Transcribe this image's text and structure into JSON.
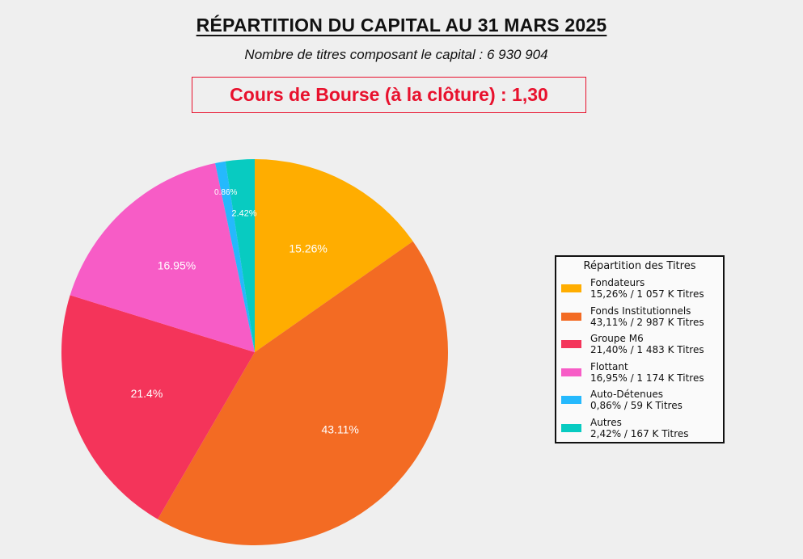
{
  "header": {
    "title": "RÉPARTITION DU CAPITAL AU 31 MARS 2025",
    "subtitle": "Nombre de titres composant le capital : 6 930 904",
    "price": "Cours de Bourse (à la clôture) : 1,30"
  },
  "chart_data": {
    "type": "pie",
    "start_angle_deg": 270,
    "direction": "clockwise",
    "slices": [
      {
        "name": "Fondateurs",
        "value": 15.26,
        "label": "15.26%",
        "detail": "15,26% / 1 057 K Titres",
        "color": "#ffad00"
      },
      {
        "name": "Fonds Institutionnels",
        "value": 43.11,
        "label": "43.11%",
        "detail": "43,11% / 2 987 K Titres",
        "color": "#f36b23"
      },
      {
        "name": "Groupe M6",
        "value": 21.4,
        "label": "21.4%",
        "detail": "21,40% / 1 483 K Titres",
        "color": "#f4345a"
      },
      {
        "name": "Flottant",
        "value": 16.95,
        "label": "16.95%",
        "detail": "16,95% / 1 174 K Titres",
        "color": "#f75cc6"
      },
      {
        "name": "Auto-Détenues",
        "value": 0.86,
        "label": "0.86%",
        "detail": "0,86% / 59 K Titres",
        "color": "#25b9fd"
      },
      {
        "name": "Autres",
        "value": 2.42,
        "label": "2.42%",
        "detail": "2,42% / 167 K Titres",
        "color": "#08cbc1"
      }
    ],
    "legend": {
      "title": "Répartition des Titres",
      "position": "right"
    }
  }
}
